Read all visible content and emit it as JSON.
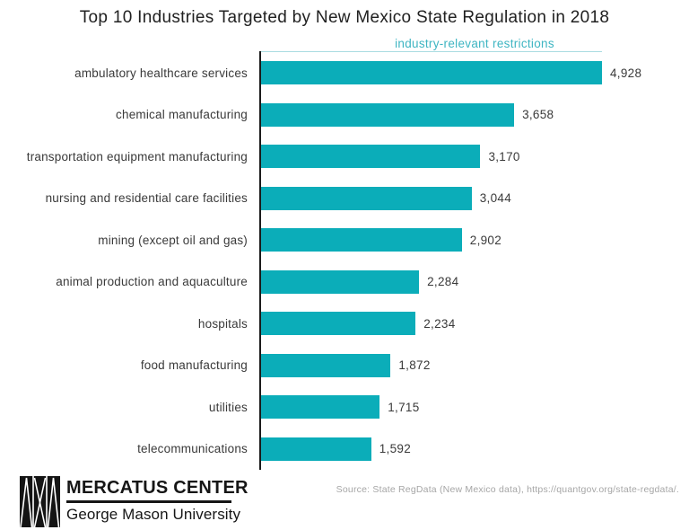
{
  "chart_data": {
    "type": "bar",
    "orientation": "horizontal",
    "title": "Top 10 Industries Targeted by New Mexico State Regulation in 2018",
    "axis_label": "industry-relevant restrictions",
    "categories": [
      "ambulatory healthcare services",
      "chemical manufacturing",
      "transportation equipment manufacturing",
      "nursing and residential care facilities",
      "mining (except oil and gas)",
      "animal production and aquaculture",
      "hospitals",
      "food manufacturing",
      "utilities",
      "telecommunications"
    ],
    "values": [
      4928,
      3658,
      3170,
      3044,
      2902,
      2284,
      2234,
      1872,
      1715,
      1592
    ],
    "value_labels": [
      "4,928",
      "3,658",
      "3,170",
      "3,044",
      "2,902",
      "2,284",
      "2,234",
      "1,872",
      "1,715",
      "1,592"
    ],
    "xlim": [
      0,
      4928
    ],
    "grid": false,
    "legend": "none",
    "value_label_position": "right-of-bar",
    "colors": {
      "bar": "#0badb9",
      "axis_label_text": "#3eb5c2",
      "axis_line": "#1b1b1b",
      "plot_top_border": "#a9dce1",
      "title_text": "#212121",
      "label_text": "#3a3a3a"
    }
  },
  "footer": {
    "logo": {
      "line1": "MERCATUS CENTER",
      "line2": "George Mason University"
    },
    "source": "Source: State RegData (New Mexico data), https://quantgov.org/state-regdata/."
  }
}
